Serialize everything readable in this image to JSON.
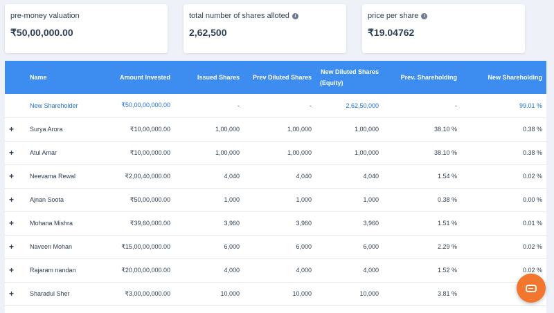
{
  "summary": {
    "pre_money_label": "pre-money valuation",
    "pre_money_value": "₹50,00,000.00",
    "shares_label": "total number of shares alloted",
    "shares_value": "2,62,500",
    "price_label": "price per share",
    "price_value": "₹19.04762",
    "info_icon": "info-icon"
  },
  "table": {
    "headers": {
      "name": "Name",
      "amount": "Amount Invested",
      "issued": "Issued Shares",
      "prev_diluted": "Prev Diluted Shares",
      "new_diluted_1": "New Diluted Shares",
      "new_diluted_2": "(Equity)",
      "prev_holding": "Prev. Shareholding",
      "new_holding": "New Shareholding"
    },
    "new_row": {
      "name": "New Shareholder",
      "amount": "₹50,00,00,000.00",
      "issued": "-",
      "prev_diluted": "-",
      "new_diluted": "2,62,50,000",
      "prev_holding": "-",
      "new_holding": "99.01 %"
    },
    "expand_symbol": "+",
    "rows": [
      {
        "name": "Surya Arora",
        "amount": "₹10,00,000.00",
        "issued": "1,00,000",
        "prev_diluted": "1,00,000",
        "new_diluted": "1,00,000",
        "prev_holding": "38.10 %",
        "new_holding": "0.38 %"
      },
      {
        "name": "Atul Amar",
        "amount": "₹10,00,000.00",
        "issued": "1,00,000",
        "prev_diluted": "1,00,000",
        "new_diluted": "1,00,000",
        "prev_holding": "38.10 %",
        "new_holding": "0.38 %"
      },
      {
        "name": "Neevama Rewal",
        "amount": "₹2,00,40,000.00",
        "issued": "4,040",
        "prev_diluted": "4,040",
        "new_diluted": "4,040",
        "prev_holding": "1.54 %",
        "new_holding": "0.02 %"
      },
      {
        "name": "Ajnan Soota",
        "amount": "₹50,00,000.00",
        "issued": "1,000",
        "prev_diluted": "1,000",
        "new_diluted": "1,000",
        "prev_holding": "0.38 %",
        "new_holding": "0.00 %"
      },
      {
        "name": "Mohana Mishra",
        "amount": "₹39,60,000.00",
        "issued": "3,960",
        "prev_diluted": "3,960",
        "new_diluted": "3,960",
        "prev_holding": "1.51 %",
        "new_holding": "0.01 %"
      },
      {
        "name": "Naveen Mohan",
        "amount": "₹15,00,00,000.00",
        "issued": "6,000",
        "prev_diluted": "6,000",
        "new_diluted": "6,000",
        "prev_holding": "2.29 %",
        "new_holding": "0.02 %"
      },
      {
        "name": "Rajaram nandan",
        "amount": "₹20,00,00,000.00",
        "issued": "4,000",
        "prev_diluted": "4,000",
        "new_diluted": "4,000",
        "prev_holding": "1.52 %",
        "new_holding": "0.02 %"
      },
      {
        "name": "Sharadul Sher",
        "amount": "₹3,00,00,000.00",
        "issued": "10,000",
        "prev_diluted": "10,000",
        "new_diluted": "10,000",
        "prev_holding": "3.81 %",
        "new_holding": ""
      }
    ]
  },
  "chat": {
    "icon": "chat-icon"
  },
  "colors": {
    "header_bg": "#3d8cf0",
    "highlight_text": "#1f6fd6",
    "chat_bg": "#f2762e"
  }
}
